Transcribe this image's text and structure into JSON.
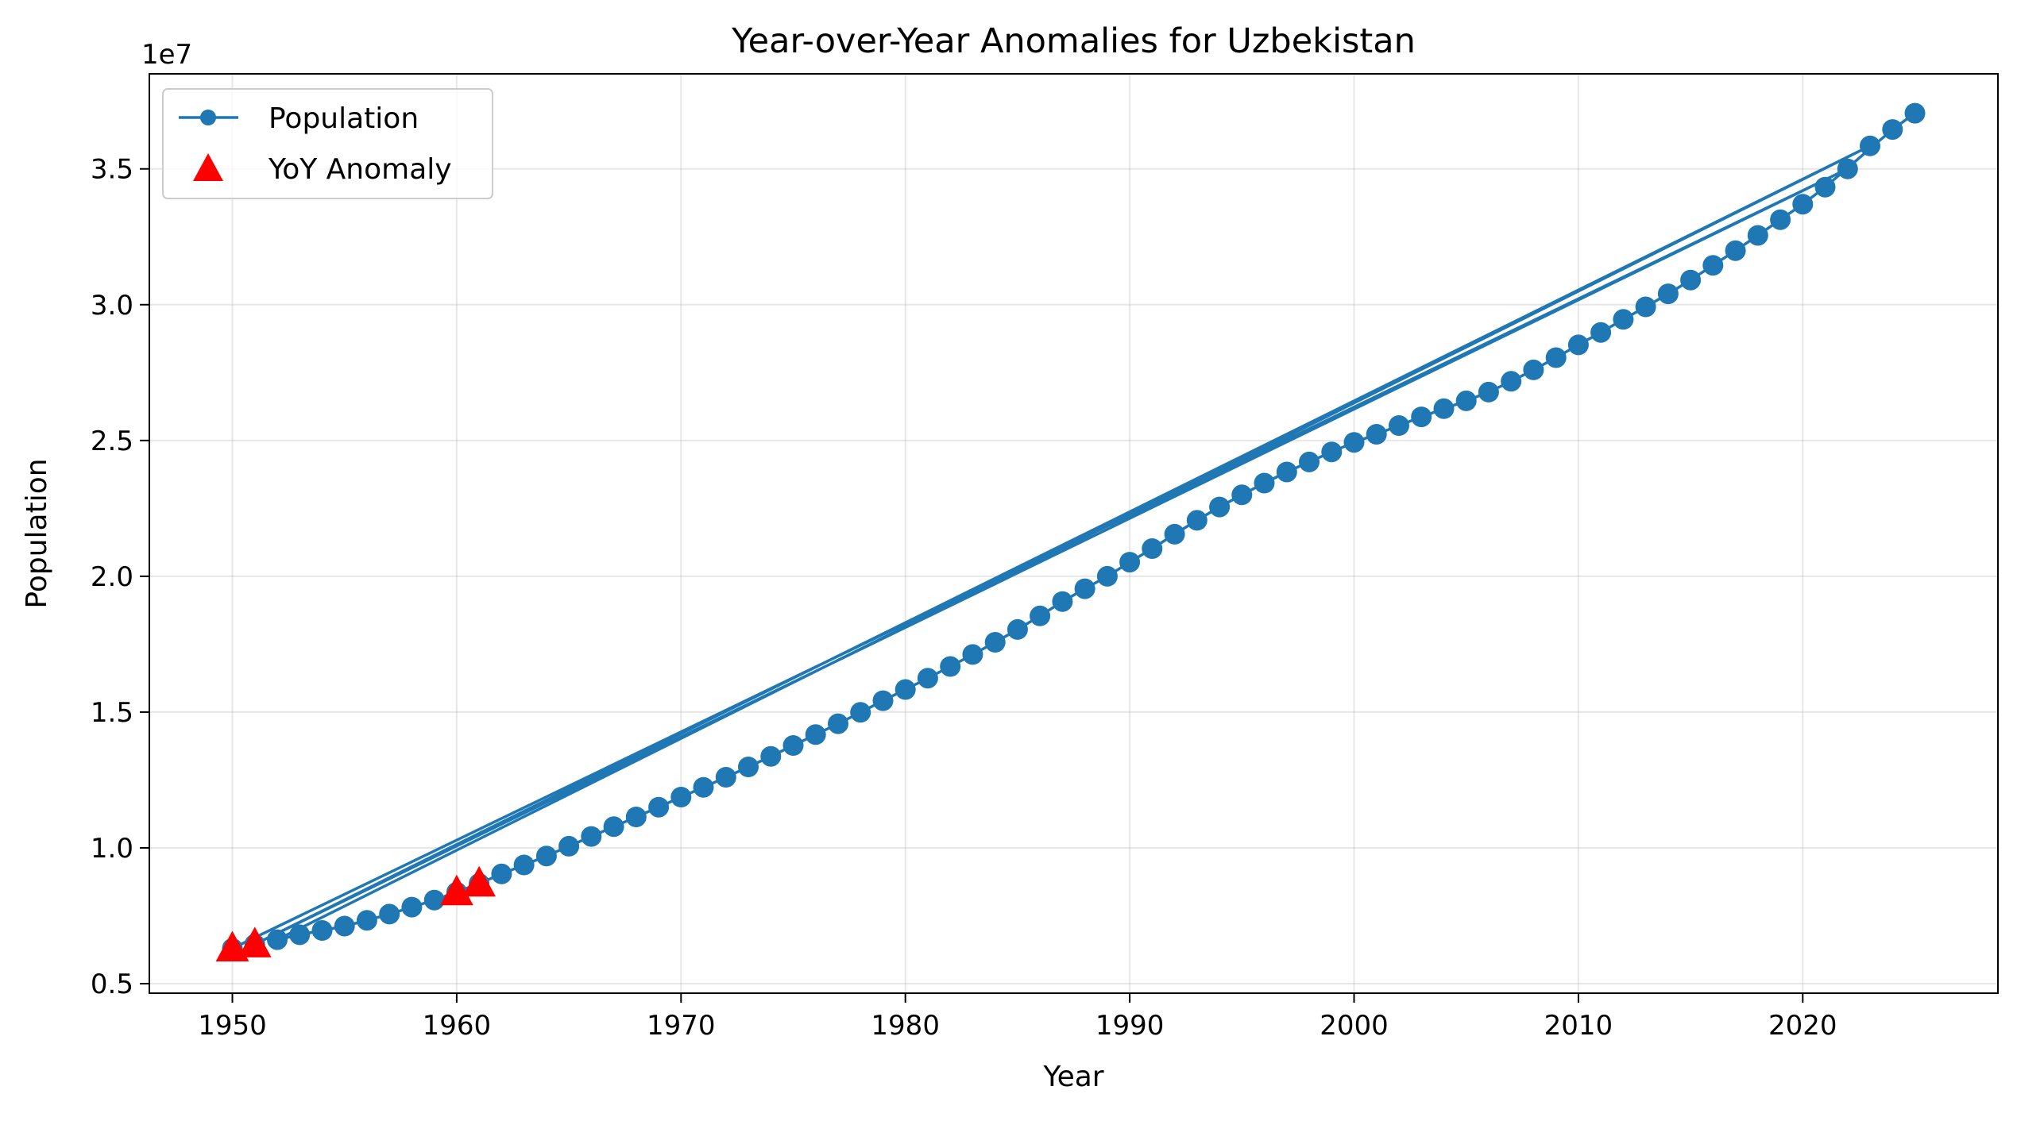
{
  "chart_data": {
    "type": "line",
    "title": "Year-over-Year Anomalies for Uzbekistan",
    "xlabel": "Year",
    "ylabel": "Population",
    "y_offset_label": "1e7",
    "xlim": [
      1946.3,
      2028.7
    ],
    "ylim": [
      4650000,
      38500000
    ],
    "x_ticks": [
      1950,
      1960,
      1970,
      1980,
      1990,
      2000,
      2010,
      2020
    ],
    "x_tick_labels": [
      "1950",
      "1960",
      "1970",
      "1980",
      "1990",
      "2000",
      "2010",
      "2020"
    ],
    "y_ticks": [
      5000000,
      10000000,
      15000000,
      20000000,
      25000000,
      30000000,
      35000000
    ],
    "y_tick_labels": [
      "0.5",
      "1.0",
      "1.5",
      "2.0",
      "2.5",
      "3.0",
      "3.5"
    ],
    "grid": true,
    "legend_position": "top-left",
    "series": [
      {
        "name": "Population",
        "color": "#1f77b4",
        "style": "line-with-circle-markers",
        "x": [
          1950,
          2022,
          1951,
          2023,
          1952,
          1953,
          1954,
          1955,
          1956,
          1957,
          1958,
          1959,
          1960,
          1961,
          1962,
          1963,
          1964,
          1965,
          1966,
          1967,
          1968,
          1969,
          1970,
          1971,
          1972,
          1973,
          1974,
          1975,
          1976,
          1977,
          1978,
          1979,
          1980,
          1981,
          1982,
          1983,
          1984,
          1985,
          1986,
          1987,
          1988,
          1989,
          1990,
          1991,
          1992,
          1993,
          1994,
          1995,
          1996,
          1997,
          1998,
          1999,
          2000,
          2001,
          2002,
          2003,
          2004,
          2005,
          2006,
          2007,
          2008,
          2009,
          2010,
          2011,
          2012,
          2013,
          2014,
          2015,
          2016,
          2017,
          2018,
          2019,
          2020,
          2021,
          2024,
          2025
        ],
        "y": [
          6300000,
          35000000,
          6450000,
          35850000,
          6620000,
          6800000,
          6960000,
          7120000,
          7330000,
          7560000,
          7820000,
          8080000,
          8370000,
          8690000,
          9040000,
          9370000,
          9700000,
          10060000,
          10420000,
          10780000,
          11140000,
          11500000,
          11870000,
          12230000,
          12600000,
          12980000,
          13370000,
          13770000,
          14170000,
          14570000,
          14990000,
          15420000,
          15830000,
          16250000,
          16680000,
          17120000,
          17570000,
          18040000,
          18540000,
          19070000,
          19540000,
          20000000,
          20520000,
          21020000,
          21550000,
          22060000,
          22550000,
          23000000,
          23430000,
          23840000,
          24210000,
          24580000,
          24930000,
          25230000,
          25550000,
          25870000,
          26170000,
          26460000,
          26780000,
          27180000,
          27600000,
          28050000,
          28520000,
          28980000,
          29460000,
          29920000,
          30400000,
          30910000,
          31450000,
          31990000,
          32550000,
          33130000,
          33700000,
          34330000,
          36450000,
          37050000
        ]
      },
      {
        "name": "YoY Anomaly",
        "color": "#ff0000",
        "style": "triangle-markers",
        "x": [
          1950,
          1951,
          1960,
          1961
        ],
        "y": [
          6300000,
          6450000,
          8370000,
          8690000
        ]
      }
    ]
  }
}
